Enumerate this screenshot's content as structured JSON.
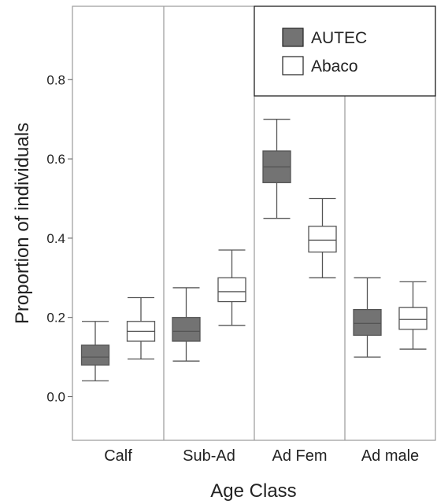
{
  "chart_data": {
    "type": "box",
    "xlabel": "Age Class",
    "ylabel": "Proportion of individuals",
    "ylim": [
      -0.11,
      0.985
    ],
    "yticks": [
      0.0,
      0.2,
      0.4,
      0.6,
      0.8
    ],
    "ytick_labels": [
      "0.0",
      "0.2",
      "0.4",
      "0.6",
      "0.8"
    ],
    "categories": [
      "Calf",
      "Sub-Ad",
      "Ad Fem",
      "Ad male"
    ],
    "grid": false,
    "legend_position": "top-right",
    "series": [
      {
        "name": "AUTEC",
        "color": "#737373",
        "boxes": [
          {
            "min": 0.04,
            "q1": 0.08,
            "median": 0.1,
            "q3": 0.13,
            "max": 0.19
          },
          {
            "min": 0.09,
            "q1": 0.14,
            "median": 0.165,
            "q3": 0.2,
            "max": 0.275
          },
          {
            "min": 0.45,
            "q1": 0.54,
            "median": 0.58,
            "q3": 0.62,
            "max": 0.7
          },
          {
            "min": 0.1,
            "q1": 0.155,
            "median": 0.185,
            "q3": 0.22,
            "max": 0.3
          }
        ]
      },
      {
        "name": "Abaco",
        "color": "#ffffff",
        "boxes": [
          {
            "min": 0.095,
            "q1": 0.14,
            "median": 0.165,
            "q3": 0.19,
            "max": 0.25
          },
          {
            "min": 0.18,
            "q1": 0.24,
            "median": 0.265,
            "q3": 0.3,
            "max": 0.37
          },
          {
            "min": 0.3,
            "q1": 0.365,
            "median": 0.395,
            "q3": 0.43,
            "max": 0.5
          },
          {
            "min": 0.12,
            "q1": 0.17,
            "median": 0.195,
            "q3": 0.225,
            "max": 0.29
          }
        ]
      }
    ]
  }
}
